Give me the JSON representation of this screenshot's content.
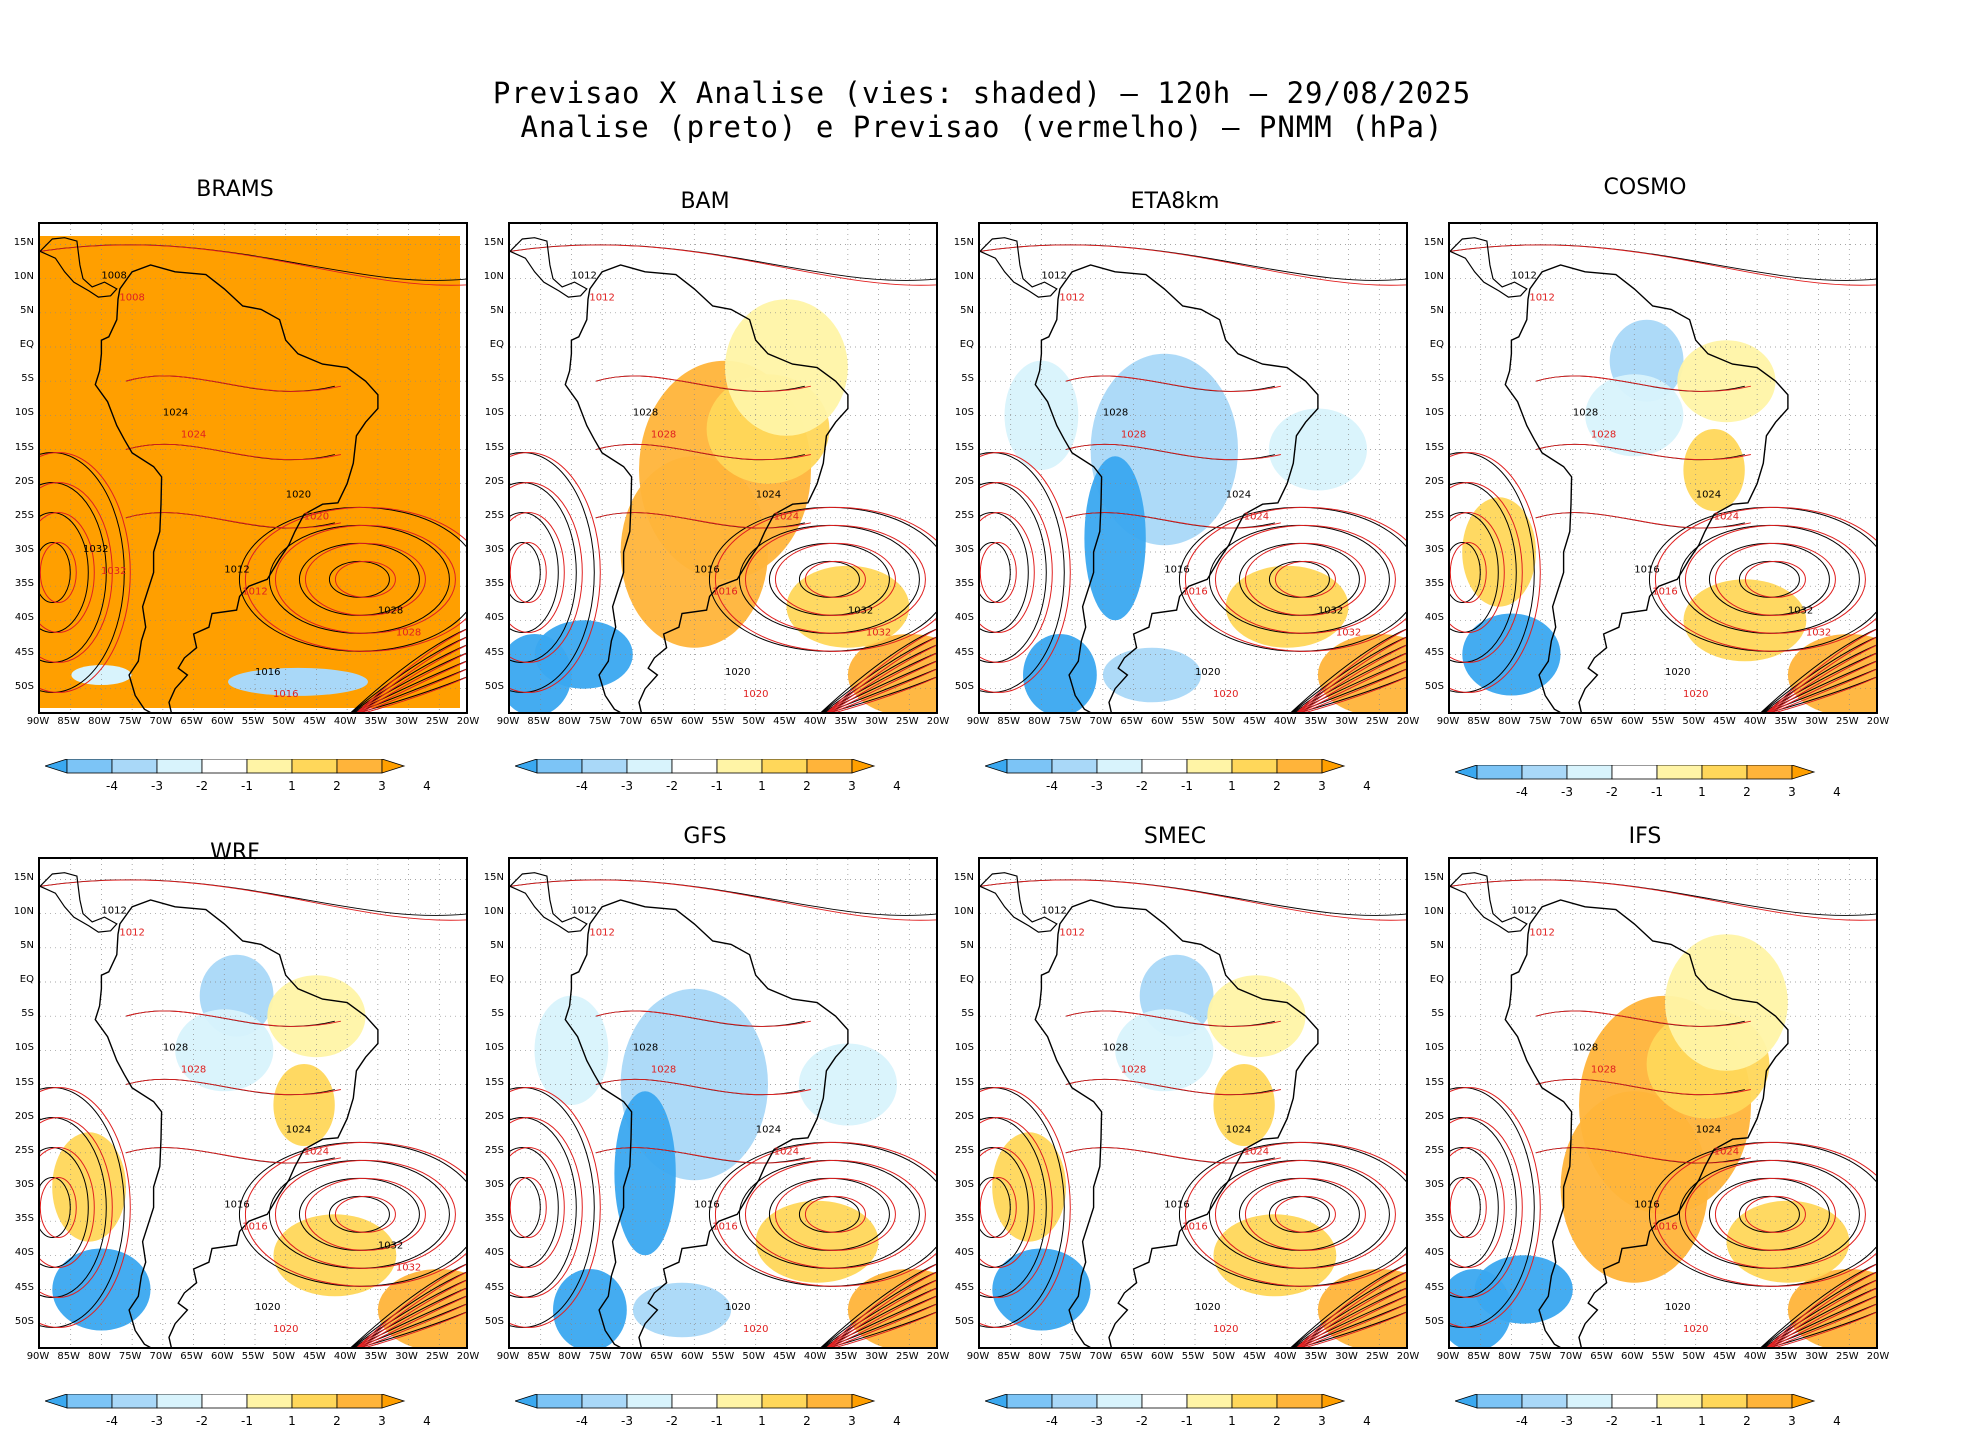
{
  "title": {
    "line1": "Previsao X Analise (vies: shaded) — 120h — 29/08/2025",
    "line2": "Analise (preto) e Previsao (vermelho) — PNMM (hPa)"
  },
  "lat_labels": [
    "15N",
    "10N",
    "5N",
    "EQ",
    "5S",
    "10S",
    "15S",
    "20S",
    "25S",
    "30S",
    "35S",
    "40S",
    "45S",
    "50S"
  ],
  "lon_labels": [
    "90W",
    "85W",
    "80W",
    "75W",
    "70W",
    "65W",
    "60W",
    "55W",
    "50W",
    "45W",
    "40W",
    "35W",
    "30W",
    "25W",
    "20W"
  ],
  "colorbar_labels": [
    "-4",
    "-3",
    "-2",
    "-1",
    "1",
    "2",
    "3",
    "4"
  ],
  "colorbar_colors": [
    "#3aa8f0",
    "#7cc4f6",
    "#a9d8f8",
    "#d8f3fc",
    "#ffffff",
    "#fff4a6",
    "#ffd75a",
    "#ffb43a",
    "#ff9f00"
  ],
  "legend_colors": {
    "analysis": "#000000",
    "forecast": "#e02020",
    "coast": "#000000"
  },
  "panels": [
    {
      "name": "BRAMS",
      "bias": "positive-strong",
      "contours": [
        "1008",
        "1012",
        "1016",
        "1020",
        "1024",
        "1028",
        "1032"
      ]
    },
    {
      "name": "BAM",
      "bias": "positive",
      "contours": [
        "1012",
        "1016",
        "1020",
        "1024",
        "1028",
        "1032"
      ]
    },
    {
      "name": "ETA8km",
      "bias": "negative",
      "contours": [
        "1012",
        "1016",
        "1020",
        "1024",
        "1028",
        "1032"
      ]
    },
    {
      "name": "COSMO",
      "bias": "mixed",
      "contours": [
        "1012",
        "1016",
        "1020",
        "1024",
        "1028",
        "1032"
      ]
    },
    {
      "name": "WRF",
      "bias": "mixed",
      "contours": [
        "1012",
        "1016",
        "1020",
        "1024",
        "1028",
        "1032"
      ]
    },
    {
      "name": "GFS",
      "bias": "negative",
      "contours": [
        "1012",
        "1016",
        "1020",
        "1024",
        "1028"
      ]
    },
    {
      "name": "SMEC",
      "bias": "mixed",
      "contours": [
        "1012",
        "1016",
        "1020",
        "1024",
        "1028"
      ]
    },
    {
      "name": "IFS",
      "bias": "positive",
      "contours": [
        "1012",
        "1016",
        "1020",
        "1024",
        "1028"
      ]
    }
  ]
}
